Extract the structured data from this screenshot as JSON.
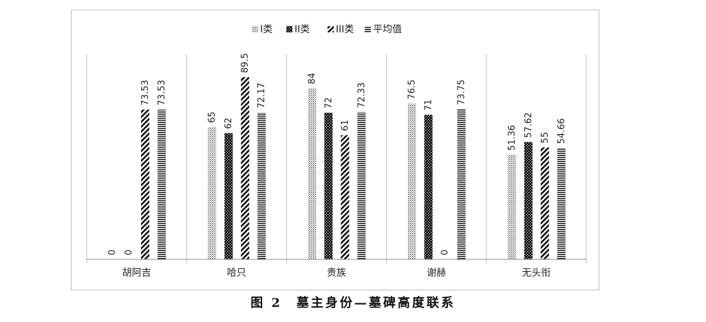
{
  "chart_data": {
    "type": "bar",
    "categories": [
      "胡阿吉",
      "哈只",
      "贵族",
      "谢赫",
      "无头衔"
    ],
    "series": [
      {
        "name": "I类",
        "values": [
          0,
          65,
          84,
          76.5,
          51.36
        ],
        "labels": [
          "0",
          "65",
          "84",
          "76.5",
          "51.36"
        ],
        "fill": "dots"
      },
      {
        "name": "II类",
        "values": [
          0,
          62,
          72,
          71,
          57.62
        ],
        "labels": [
          "0",
          "62",
          "72",
          "71",
          "57.62"
        ],
        "fill": "checker"
      },
      {
        "name": "III类",
        "values": [
          73.53,
          89.5,
          61,
          0,
          55
        ],
        "labels": [
          "73.53",
          "89.5",
          "61",
          "0",
          "55"
        ],
        "fill": "diagonal"
      },
      {
        "name": "平均值",
        "values": [
          73.53,
          72.17,
          72.33,
          73.75,
          54.66
        ],
        "labels": [
          "73.53",
          "72.17",
          "72.33",
          "73.75",
          "54.66"
        ],
        "fill": "horizontal-lines"
      }
    ],
    "ylim": [
      0,
      100
    ],
    "legend": "top-center",
    "grid": false
  },
  "caption": "图 2　墓主身份—墓碑高度联系"
}
